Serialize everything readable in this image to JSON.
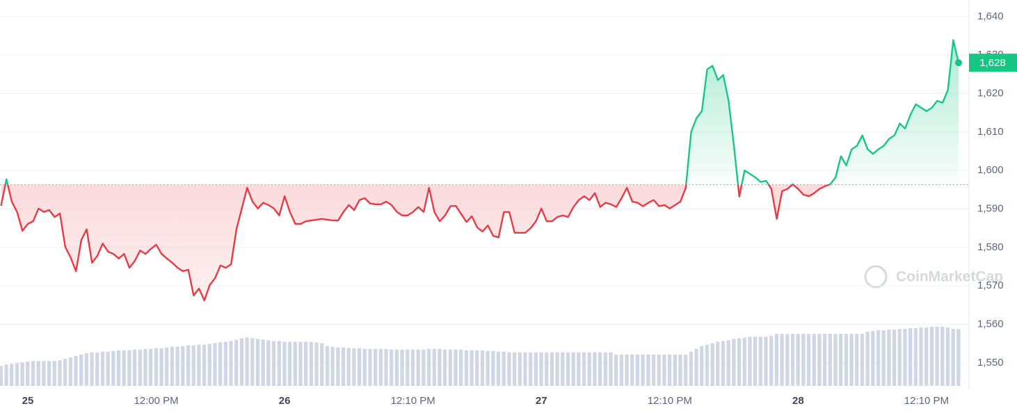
{
  "chart_data": {
    "type": "line",
    "values": [
      1590.8,
      1597.7,
      1591.9,
      1589.2,
      1584.3,
      1586.1,
      1586.8,
      1590.1,
      1589.2,
      1589.7,
      1587.9,
      1588.8,
      1580.1,
      1577.4,
      1573.8,
      1581.9,
      1584.7,
      1576.0,
      1577.8,
      1581.0,
      1578.9,
      1578.3,
      1577.1,
      1578.3,
      1574.7,
      1576.5,
      1579.2,
      1578.3,
      1579.6,
      1580.7,
      1578.3,
      1577.1,
      1576.0,
      1574.7,
      1573.8,
      1574.2,
      1567.5,
      1569.3,
      1566.2,
      1570.2,
      1572.0,
      1575.3,
      1574.7,
      1575.6,
      1584.7,
      1590.1,
      1595.5,
      1591.9,
      1590.1,
      1591.6,
      1591.0,
      1590.1,
      1588.3,
      1593.3,
      1589.2,
      1586.1,
      1586.1,
      1586.8,
      1587.0,
      1587.2,
      1587.4,
      1587.2,
      1587.0,
      1587.0,
      1589.2,
      1591.0,
      1589.7,
      1592.3,
      1592.8,
      1591.4,
      1591.2,
      1591.2,
      1591.9,
      1591.0,
      1589.2,
      1588.3,
      1588.3,
      1589.2,
      1590.5,
      1589.2,
      1595.5,
      1589.2,
      1586.8,
      1588.3,
      1590.7,
      1590.8,
      1588.7,
      1586.6,
      1588.1,
      1585.2,
      1584.1,
      1585.7,
      1583.0,
      1582.6,
      1589.2,
      1589.2,
      1583.8,
      1583.8,
      1583.8,
      1585.0,
      1586.8,
      1590.1,
      1586.8,
      1586.8,
      1587.9,
      1588.3,
      1587.9,
      1590.5,
      1592.3,
      1593.3,
      1592.3,
      1594.1,
      1590.5,
      1591.6,
      1591.2,
      1590.5,
      1592.8,
      1595.5,
      1591.9,
      1591.6,
      1590.7,
      1591.6,
      1592.3,
      1590.7,
      1591.0,
      1590.1,
      1591.0,
      1591.9,
      1595.5,
      1610.0,
      1613.6,
      1615.4,
      1626.3,
      1627.2,
      1623.5,
      1624.8,
      1618.1,
      1606.4,
      1593.2,
      1600.0,
      1599.1,
      1598.2,
      1597.0,
      1597.3,
      1595.2,
      1587.4,
      1594.6,
      1595.2,
      1596.4,
      1595.2,
      1593.7,
      1593.3,
      1594.1,
      1595.2,
      1595.9,
      1596.4,
      1598.2,
      1603.7,
      1601.3,
      1605.5,
      1606.4,
      1609.1,
      1605.5,
      1604.3,
      1605.5,
      1606.4,
      1608.2,
      1609.1,
      1612.2,
      1610.9,
      1614.5,
      1617.2,
      1616.3,
      1615.4,
      1616.3,
      1618.1,
      1617.6,
      1620.9,
      1633.9,
      1628
    ],
    "volume": [
      28,
      30,
      31,
      32,
      33,
      34,
      35,
      35,
      35,
      35,
      35,
      36,
      38,
      40,
      42,
      44,
      46,
      47,
      47,
      48,
      48,
      49,
      50,
      50,
      50,
      51,
      51,
      52,
      52,
      53,
      53,
      54,
      55,
      55,
      56,
      57,
      57,
      58,
      58,
      59,
      60,
      61,
      62,
      63,
      65,
      67,
      68,
      67,
      66,
      65,
      64,
      63,
      63,
      62,
      62,
      62,
      62,
      62,
      62,
      61,
      60,
      56,
      55,
      54,
      54,
      53,
      53,
      53,
      52,
      52,
      52,
      52,
      52,
      51,
      51,
      51,
      51,
      51,
      51,
      51,
      52,
      52,
      52,
      51,
      51,
      51,
      51,
      50,
      50,
      50,
      50,
      49,
      49,
      48,
      48,
      47,
      47,
      47,
      47,
      47,
      47,
      47,
      47,
      47,
      47,
      47,
      47,
      47,
      47,
      47,
      47,
      47,
      47,
      47,
      47,
      44,
      44,
      44,
      44,
      44,
      44,
      44,
      44,
      44,
      44,
      44,
      44,
      44,
      44,
      48,
      52,
      56,
      58,
      60,
      62,
      63,
      64,
      66,
      67,
      68,
      69,
      69,
      69,
      69,
      70,
      73,
      73,
      73,
      73,
      73,
      73,
      73,
      73,
      73,
      73,
      73,
      73,
      73,
      73,
      73,
      73,
      73,
      76,
      77,
      78,
      78,
      79,
      79,
      80,
      80,
      81,
      81,
      82,
      82,
      83,
      83,
      83,
      82,
      80,
      80
    ],
    "baseline": 1596.3,
    "last_price": {
      "value": 1628,
      "label": "1,628"
    },
    "up_color": "#16c784",
    "down_color": "#ea3943",
    "volume_color": "#cfd6e4",
    "ylim": [
      1544,
      1644.3
    ],
    "yticks": [
      {
        "value": 1550,
        "label": "1,550"
      },
      {
        "value": 1560,
        "label": "1,560"
      },
      {
        "value": 1570,
        "label": "1,570"
      },
      {
        "value": 1580,
        "label": "1,580"
      },
      {
        "value": 1590,
        "label": "1,590"
      },
      {
        "value": 1600,
        "label": "1,600"
      },
      {
        "value": 1610,
        "label": "1,610"
      },
      {
        "value": 1620,
        "label": "1,620"
      },
      {
        "value": 1630,
        "label": "1,630"
      },
      {
        "value": 1640,
        "label": "1,640"
      }
    ],
    "xticks": [
      {
        "value": 5,
        "label": "25"
      },
      {
        "value": 29,
        "label": "12:00 PM"
      },
      {
        "value": 53,
        "label": "26"
      },
      {
        "value": 77,
        "label": "12:10 PM"
      },
      {
        "value": 101,
        "label": "27"
      },
      {
        "value": 125,
        "label": "12:10 PM"
      },
      {
        "value": 149,
        "label": "28"
      },
      {
        "value": 173,
        "label": "12:10 PM"
      }
    ],
    "grid": true,
    "watermark": "CoinMarketCap"
  }
}
